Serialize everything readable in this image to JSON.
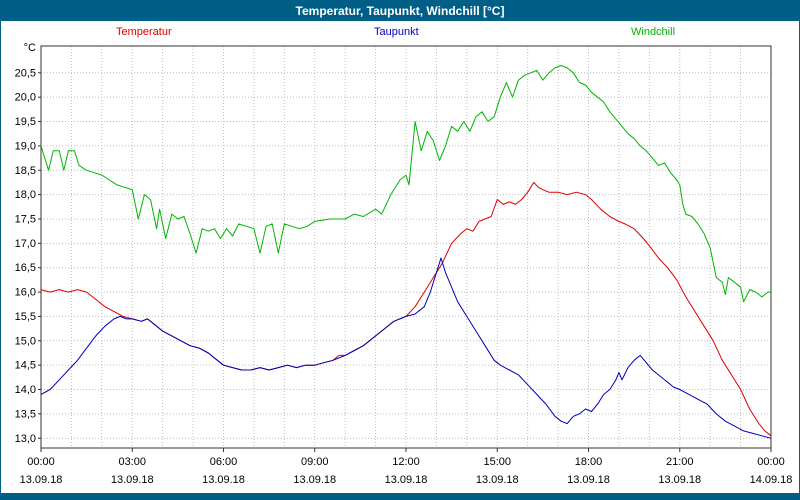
{
  "window": {
    "title": "Temperatur, Taupunkt, Windchill [°C]"
  },
  "colors": {
    "titlebar_bg": "#005f87",
    "titlebar_text": "#ffffff",
    "plot_frame": "#333333",
    "grid": "#bdbdbd",
    "background": "#ffffff"
  },
  "legend": [
    {
      "label": "Temperatur",
      "color": "#dd0000"
    },
    {
      "label": "Taupunkt",
      "color": "#0000bb"
    },
    {
      "label": "Windchill",
      "color": "#00b400"
    }
  ],
  "axes": {
    "y_unit": "°C",
    "ytick_values": [
      13,
      13.5,
      14,
      14.5,
      15,
      15.5,
      16,
      16.5,
      17,
      17.5,
      18,
      18.5,
      19,
      19.5,
      20,
      20.5
    ],
    "ytick_labels": [
      "13,0",
      "13,5",
      "14,0",
      "14,5",
      "15,0",
      "15,5",
      "16,0",
      "16,5",
      "17,0",
      "17,5",
      "18,0",
      "18,5",
      "19,0",
      "19,5",
      "20,0",
      "20,5"
    ],
    "xtick_hours": [
      0,
      3,
      6,
      9,
      12,
      15,
      18,
      21,
      24
    ],
    "xtick_times": [
      "00:00",
      "03:00",
      "06:00",
      "09:00",
      "12:00",
      "15:00",
      "18:00",
      "21:00",
      "00:00"
    ],
    "xtick_dates": [
      "13.09.18",
      "13.09.18",
      "13.09.18",
      "13.09.18",
      "13.09.18",
      "13.09.18",
      "13.09.18",
      "13.09.18",
      "14.09.18"
    ],
    "minor_x_step_hours": 1
  },
  "chart_data": {
    "type": "line",
    "title": "Temperatur, Taupunkt, Windchill [°C]",
    "xlabel": "",
    "ylabel": "°C",
    "xlim": [
      0,
      24
    ],
    "ylim": [
      12.8,
      21.05
    ],
    "grid": "dotted",
    "legend_position": "top",
    "series": [
      {
        "name": "Temperatur",
        "color": "#dd0000",
        "points": [
          [
            0,
            16.05
          ],
          [
            0.3,
            16.0
          ],
          [
            0.6,
            16.05
          ],
          [
            0.9,
            16.0
          ],
          [
            1.2,
            16.05
          ],
          [
            1.5,
            16.0
          ],
          [
            1.8,
            15.85
          ],
          [
            2.1,
            15.7
          ],
          [
            2.4,
            15.6
          ],
          [
            2.7,
            15.5
          ],
          [
            3.0,
            15.45
          ],
          [
            3.3,
            15.4
          ],
          [
            3.5,
            15.45
          ],
          [
            3.7,
            15.35
          ],
          [
            4.0,
            15.2
          ],
          [
            4.3,
            15.1
          ],
          [
            4.6,
            15.0
          ],
          [
            4.9,
            14.9
          ],
          [
            5.2,
            14.85
          ],
          [
            5.5,
            14.75
          ],
          [
            5.8,
            14.6
          ],
          [
            6.0,
            14.5
          ],
          [
            6.3,
            14.45
          ],
          [
            6.6,
            14.4
          ],
          [
            6.9,
            14.4
          ],
          [
            7.2,
            14.45
          ],
          [
            7.5,
            14.4
          ],
          [
            7.8,
            14.45
          ],
          [
            8.1,
            14.5
          ],
          [
            8.4,
            14.45
          ],
          [
            8.7,
            14.5
          ],
          [
            9.0,
            14.5
          ],
          [
            9.3,
            14.55
          ],
          [
            9.6,
            14.6
          ],
          [
            9.8,
            14.7
          ],
          [
            10.0,
            14.7
          ],
          [
            10.3,
            14.8
          ],
          [
            10.6,
            14.9
          ],
          [
            11.0,
            15.1
          ],
          [
            11.3,
            15.25
          ],
          [
            11.6,
            15.4
          ],
          [
            12.0,
            15.5
          ],
          [
            12.3,
            15.7
          ],
          [
            12.6,
            16.0
          ],
          [
            12.9,
            16.3
          ],
          [
            13.2,
            16.6
          ],
          [
            13.5,
            17.0
          ],
          [
            13.8,
            17.2
          ],
          [
            14.0,
            17.3
          ],
          [
            14.2,
            17.25
          ],
          [
            14.4,
            17.45
          ],
          [
            14.6,
            17.5
          ],
          [
            14.8,
            17.55
          ],
          [
            15.0,
            17.9
          ],
          [
            15.2,
            17.8
          ],
          [
            15.4,
            17.85
          ],
          [
            15.6,
            17.8
          ],
          [
            15.8,
            17.9
          ],
          [
            16.0,
            18.05
          ],
          [
            16.2,
            18.25
          ],
          [
            16.35,
            18.15
          ],
          [
            16.5,
            18.1
          ],
          [
            16.7,
            18.05
          ],
          [
            17.0,
            18.05
          ],
          [
            17.3,
            18.0
          ],
          [
            17.6,
            18.05
          ],
          [
            17.9,
            18.0
          ],
          [
            18.1,
            17.9
          ],
          [
            18.4,
            17.7
          ],
          [
            18.7,
            17.55
          ],
          [
            19.0,
            17.45
          ],
          [
            19.2,
            17.4
          ],
          [
            19.5,
            17.3
          ],
          [
            19.8,
            17.1
          ],
          [
            20.0,
            16.95
          ],
          [
            20.3,
            16.7
          ],
          [
            20.6,
            16.5
          ],
          [
            20.9,
            16.25
          ],
          [
            21.2,
            15.9
          ],
          [
            21.5,
            15.6
          ],
          [
            21.8,
            15.3
          ],
          [
            22.1,
            15.0
          ],
          [
            22.4,
            14.6
          ],
          [
            22.7,
            14.3
          ],
          [
            23.0,
            14.0
          ],
          [
            23.3,
            13.6
          ],
          [
            23.6,
            13.3
          ],
          [
            23.8,
            13.15
          ],
          [
            24,
            13.05
          ]
        ]
      },
      {
        "name": "Taupunkt",
        "color": "#0000bb",
        "points": [
          [
            0,
            13.9
          ],
          [
            0.3,
            14.0
          ],
          [
            0.6,
            14.2
          ],
          [
            0.9,
            14.4
          ],
          [
            1.2,
            14.6
          ],
          [
            1.5,
            14.85
          ],
          [
            1.8,
            15.1
          ],
          [
            2.1,
            15.3
          ],
          [
            2.4,
            15.45
          ],
          [
            2.6,
            15.5
          ],
          [
            2.8,
            15.45
          ],
          [
            3.0,
            15.45
          ],
          [
            3.3,
            15.4
          ],
          [
            3.5,
            15.45
          ],
          [
            3.7,
            15.35
          ],
          [
            4.0,
            15.2
          ],
          [
            4.3,
            15.1
          ],
          [
            4.6,
            15.0
          ],
          [
            4.9,
            14.9
          ],
          [
            5.2,
            14.85
          ],
          [
            5.5,
            14.75
          ],
          [
            5.8,
            14.6
          ],
          [
            6.0,
            14.5
          ],
          [
            6.3,
            14.45
          ],
          [
            6.6,
            14.4
          ],
          [
            6.9,
            14.4
          ],
          [
            7.2,
            14.45
          ],
          [
            7.5,
            14.4
          ],
          [
            7.8,
            14.45
          ],
          [
            8.1,
            14.5
          ],
          [
            8.4,
            14.45
          ],
          [
            8.7,
            14.5
          ],
          [
            9.0,
            14.5
          ],
          [
            9.3,
            14.55
          ],
          [
            9.6,
            14.6
          ],
          [
            10.0,
            14.7
          ],
          [
            10.3,
            14.8
          ],
          [
            10.6,
            14.9
          ],
          [
            11.0,
            15.1
          ],
          [
            11.3,
            15.25
          ],
          [
            11.6,
            15.4
          ],
          [
            12.0,
            15.5
          ],
          [
            12.3,
            15.55
          ],
          [
            12.6,
            15.7
          ],
          [
            12.8,
            16.0
          ],
          [
            13.0,
            16.4
          ],
          [
            13.15,
            16.7
          ],
          [
            13.3,
            16.4
          ],
          [
            13.5,
            16.1
          ],
          [
            13.7,
            15.8
          ],
          [
            14.0,
            15.5
          ],
          [
            14.3,
            15.2
          ],
          [
            14.6,
            14.9
          ],
          [
            14.9,
            14.6
          ],
          [
            15.1,
            14.5
          ],
          [
            15.4,
            14.4
          ],
          [
            15.7,
            14.3
          ],
          [
            16.0,
            14.1
          ],
          [
            16.3,
            13.9
          ],
          [
            16.6,
            13.7
          ],
          [
            16.9,
            13.45
          ],
          [
            17.1,
            13.35
          ],
          [
            17.3,
            13.3
          ],
          [
            17.5,
            13.45
          ],
          [
            17.7,
            13.5
          ],
          [
            17.9,
            13.6
          ],
          [
            18.1,
            13.55
          ],
          [
            18.3,
            13.7
          ],
          [
            18.5,
            13.9
          ],
          [
            18.7,
            14.0
          ],
          [
            18.9,
            14.2
          ],
          [
            19.0,
            14.35
          ],
          [
            19.1,
            14.2
          ],
          [
            19.3,
            14.45
          ],
          [
            19.5,
            14.6
          ],
          [
            19.7,
            14.7
          ],
          [
            19.9,
            14.55
          ],
          [
            20.1,
            14.4
          ],
          [
            20.3,
            14.3
          ],
          [
            20.5,
            14.2
          ],
          [
            20.8,
            14.05
          ],
          [
            21.0,
            14.0
          ],
          [
            21.3,
            13.9
          ],
          [
            21.6,
            13.8
          ],
          [
            21.9,
            13.7
          ],
          [
            22.2,
            13.5
          ],
          [
            22.5,
            13.35
          ],
          [
            22.8,
            13.25
          ],
          [
            23.1,
            13.15
          ],
          [
            23.4,
            13.1
          ],
          [
            23.7,
            13.05
          ],
          [
            24,
            13.0
          ]
        ]
      },
      {
        "name": "Windchill",
        "color": "#00b400",
        "points": [
          [
            0,
            19.0
          ],
          [
            0.1,
            18.8
          ],
          [
            0.25,
            18.5
          ],
          [
            0.4,
            18.9
          ],
          [
            0.6,
            18.9
          ],
          [
            0.75,
            18.5
          ],
          [
            0.9,
            18.9
          ],
          [
            1.1,
            18.9
          ],
          [
            1.25,
            18.6
          ],
          [
            1.5,
            18.5
          ],
          [
            1.75,
            18.45
          ],
          [
            2.0,
            18.4
          ],
          [
            2.25,
            18.3
          ],
          [
            2.5,
            18.2
          ],
          [
            2.75,
            18.15
          ],
          [
            3.0,
            18.1
          ],
          [
            3.2,
            17.5
          ],
          [
            3.4,
            18.0
          ],
          [
            3.6,
            17.9
          ],
          [
            3.8,
            17.3
          ],
          [
            3.9,
            17.7
          ],
          [
            4.1,
            17.1
          ],
          [
            4.3,
            17.6
          ],
          [
            4.5,
            17.5
          ],
          [
            4.7,
            17.55
          ],
          [
            4.9,
            17.2
          ],
          [
            5.1,
            16.8
          ],
          [
            5.3,
            17.3
          ],
          [
            5.5,
            17.25
          ],
          [
            5.7,
            17.3
          ],
          [
            5.9,
            17.1
          ],
          [
            6.1,
            17.3
          ],
          [
            6.3,
            17.15
          ],
          [
            6.5,
            17.4
          ],
          [
            6.75,
            17.35
          ],
          [
            7.0,
            17.3
          ],
          [
            7.2,
            16.8
          ],
          [
            7.4,
            17.35
          ],
          [
            7.6,
            17.4
          ],
          [
            7.8,
            16.8
          ],
          [
            8.0,
            17.4
          ],
          [
            8.25,
            17.35
          ],
          [
            8.5,
            17.3
          ],
          [
            8.75,
            17.35
          ],
          [
            9.0,
            17.45
          ],
          [
            9.5,
            17.5
          ],
          [
            10.0,
            17.5
          ],
          [
            10.3,
            17.6
          ],
          [
            10.6,
            17.55
          ],
          [
            11.0,
            17.7
          ],
          [
            11.2,
            17.6
          ],
          [
            11.5,
            18.0
          ],
          [
            11.8,
            18.3
          ],
          [
            12.0,
            18.4
          ],
          [
            12.1,
            18.2
          ],
          [
            12.3,
            19.5
          ],
          [
            12.5,
            18.9
          ],
          [
            12.7,
            19.3
          ],
          [
            12.9,
            19.1
          ],
          [
            13.1,
            18.7
          ],
          [
            13.3,
            19.0
          ],
          [
            13.5,
            19.4
          ],
          [
            13.7,
            19.3
          ],
          [
            13.9,
            19.5
          ],
          [
            14.1,
            19.3
          ],
          [
            14.3,
            19.6
          ],
          [
            14.5,
            19.7
          ],
          [
            14.7,
            19.5
          ],
          [
            14.9,
            19.6
          ],
          [
            15.1,
            20.0
          ],
          [
            15.3,
            20.3
          ],
          [
            15.5,
            20.0
          ],
          [
            15.7,
            20.35
          ],
          [
            15.9,
            20.45
          ],
          [
            16.1,
            20.5
          ],
          [
            16.3,
            20.55
          ],
          [
            16.5,
            20.35
          ],
          [
            16.7,
            20.5
          ],
          [
            16.9,
            20.6
          ],
          [
            17.1,
            20.65
          ],
          [
            17.3,
            20.6
          ],
          [
            17.5,
            20.5
          ],
          [
            17.7,
            20.3
          ],
          [
            17.9,
            20.25
          ],
          [
            18.1,
            20.1
          ],
          [
            18.3,
            20.0
          ],
          [
            18.5,
            19.9
          ],
          [
            18.7,
            19.7
          ],
          [
            18.9,
            19.55
          ],
          [
            19.1,
            19.4
          ],
          [
            19.3,
            19.25
          ],
          [
            19.5,
            19.15
          ],
          [
            19.7,
            19.0
          ],
          [
            19.9,
            18.9
          ],
          [
            20.1,
            18.75
          ],
          [
            20.3,
            18.6
          ],
          [
            20.5,
            18.65
          ],
          [
            20.7,
            18.45
          ],
          [
            20.9,
            18.3
          ],
          [
            21.0,
            18.2
          ],
          [
            21.1,
            17.8
          ],
          [
            21.2,
            17.6
          ],
          [
            21.4,
            17.55
          ],
          [
            21.6,
            17.4
          ],
          [
            21.8,
            17.2
          ],
          [
            22.0,
            16.9
          ],
          [
            22.2,
            16.3
          ],
          [
            22.4,
            16.2
          ],
          [
            22.5,
            15.95
          ],
          [
            22.6,
            16.3
          ],
          [
            22.8,
            16.2
          ],
          [
            23.0,
            16.1
          ],
          [
            23.1,
            15.8
          ],
          [
            23.3,
            16.05
          ],
          [
            23.5,
            16.0
          ],
          [
            23.7,
            15.9
          ],
          [
            23.9,
            16.0
          ],
          [
            24,
            16.0
          ]
        ]
      }
    ]
  }
}
